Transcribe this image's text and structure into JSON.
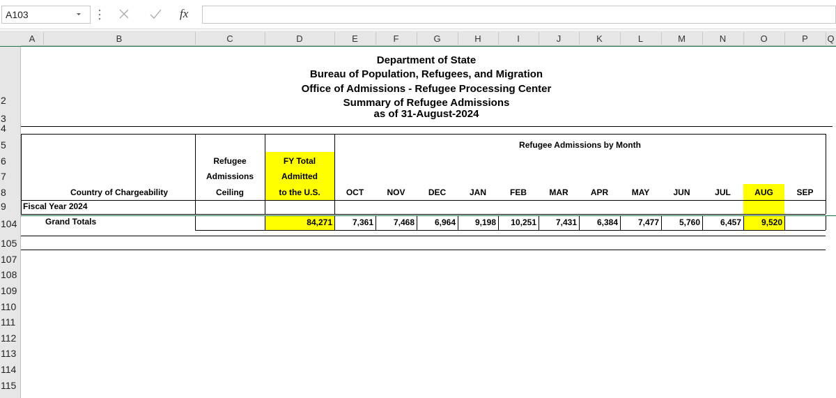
{
  "name_box": "A103",
  "formula_icon": "fx",
  "column_headers": [
    "A",
    "B",
    "C",
    "D",
    "E",
    "F",
    "G",
    "H",
    "I",
    "J",
    "K",
    "L",
    "M",
    "N",
    "O",
    "P",
    "Q"
  ],
  "row_headers": [
    "2",
    "3",
    "4",
    "5",
    "6",
    "7",
    "8",
    "9",
    "104",
    "105",
    "107",
    "108",
    "109",
    "110",
    "111",
    "112",
    "113",
    "114",
    "115"
  ],
  "title_lines": [
    "Department of State",
    "Bureau of Population, Refugees, and Migration",
    "Office of Admissions - Refugee Processing Center",
    "Summary of Refugee Admissions",
    "as of 31-August-2024"
  ],
  "headers": {
    "ceiling": [
      "Refugee",
      "Admissions",
      "Ceiling"
    ],
    "fy_total": [
      "FY Total",
      "Admitted",
      "to the U.S."
    ],
    "country": "Country of Chargeability",
    "by_month": "Refugee Admissions by Month",
    "months": [
      "OCT",
      "NOV",
      "DEC",
      "JAN",
      "FEB",
      "MAR",
      "APR",
      "MAY",
      "JUN",
      "JUL",
      "AUG",
      "SEP"
    ]
  },
  "fiscal_year": "Fiscal Year 2024",
  "grand_totals": {
    "label": "Grand Totals",
    "fy_total": "84,271",
    "months": [
      "7,361",
      "7,468",
      "6,964",
      "9,198",
      "10,251",
      "7,431",
      "6,384",
      "7,477",
      "5,760",
      "6,457",
      "9,520"
    ]
  }
}
